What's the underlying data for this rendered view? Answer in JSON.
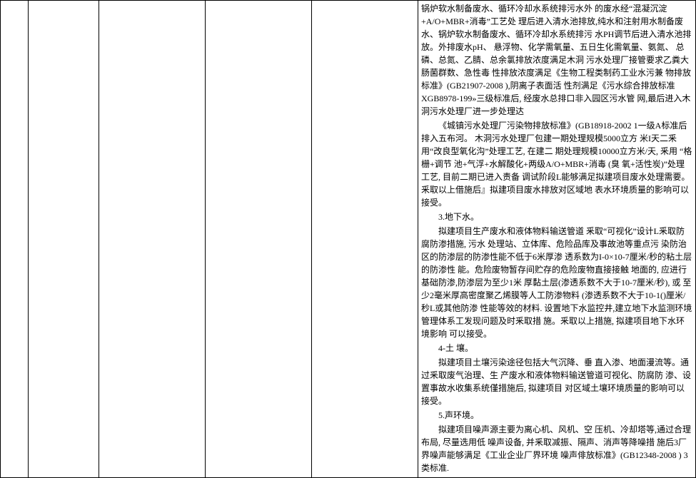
{
  "row": {
    "c1": "",
    "c2": "",
    "c3": "",
    "c4": "",
    "c5": "",
    "content": {
      "para1": "锅炉软水制备废水、循环冷却水系统排污水外 的废水经“混凝沉淀+A/O+MBR+消毒”工艺处 理后进入清水池排放,纯水和注射用水制备废 水、锅炉软水制备废水、循环冷却水系统排污 水PH调节后进入清水池排放。外排废水pH、 悬浮物、化学需氧量、五日生化需氧量、氨氮、 总磷、总氮、乙腈、总余氯排放浓度满足木洞 污水处理厂接管要求乙粪大肠菌群数、急性毒 性排放浓度满足《生物工程类制药工业水污兼 物排放标准》(GB21907-2008 ),阴离子表面活 性剂满足《污水综合排放标准XGB8978-199»三级标准后, 经废水总排口非入园区污水管 网,最后进入木洞污水处理厂进一步处理达",
      "para2": "《城镇污水处理厂污染物排放标准》(GB18918-2002 1一级A标准后排入五布河。 木洞污水处理厂包建一期处理规模5000立方 米I天二釆用“改良型氧化沟”处理工艺, 在建二 期处理规模10000立方米/天, 釆用 “格栅+调节 池+气浮+水解酸化+两级A/O+MBR+消毒 (臭 氧+活性炭)”处理工艺, 目前二期已进入责备 调试阶段L能够满足拟建项目废水处理需要。 釆取以上借施后』拟建项目废水排放对区域地 表水环境质量的影响可以接受。",
      "heading3": "3.地下水。",
      "para3": "拟建项目生产废水和液体物料输送管道 釆取“可视化”设计L釆取防腐防渗措施, 污水 处理站、立体库、危险品库及事故池等重点污 染防治区的防渗层的防渗性能不低于6米厚渗 透系数为I-0×10-7厘米/秒的粘土层的防渗性 能。危险废物暂存间贮存的危险废物直接接触 地面的, 应进行基础防渗,防渗层为至少1米 厚黏土层(渗透系数不大于10-7厘米/秒), 或 至少2毫米厚高密度聚乙烯膜等人工防渗物料 (渗透系数不大于10-1()厘米/秒L或其他防渗 性能等效的材料. 设置地下水监控井,建立地下水监测环境管理体系工发现问题及时釆取措 施。釆取以上措施, 拟建项目地下水环境影响 可以接受。",
      "heading4": "4-土 壤。",
      "para4": "拟建项目土壤污染途径包括大气沉降、垂 直入渗、地面漫流等。通过釆取废气治理、生 产废水和液体物料输送管道可视化、防腐防 渗、设置事故水收集系统僅措施后, 拟建项目 对区域土壤环境质量的影响可以接受。",
      "heading5": "5.声环境。",
      "para5": "拟建项目噪声源主要为离心机、风机、空 压机、冷却塔等,通过合理布局, 尽量选用低 噪声设备, 并釆取减振、隔声、消声等降噪措 施后3厂界噪声能够满足《工业企业厂界环境 噪声俳放标准》(GB12348-2008 ) 3类标准."
    }
  }
}
